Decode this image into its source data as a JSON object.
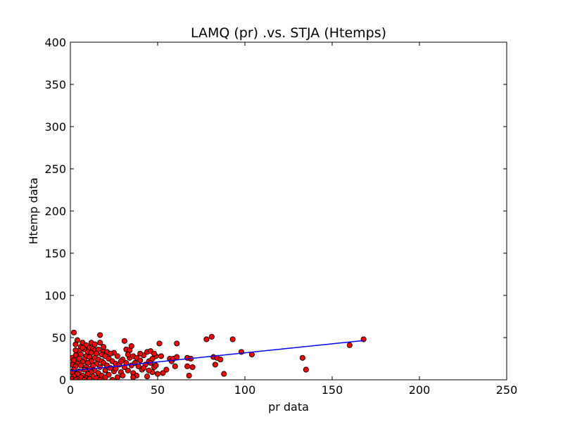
{
  "chart_data": {
    "type": "scatter",
    "title": "LAMQ (pr) .vs. STJA (Htemps)",
    "xlabel": "pr data",
    "ylabel": "Htemp data",
    "xlim": [
      0,
      250
    ],
    "ylim": [
      0,
      400
    ],
    "xticks": [
      0,
      50,
      100,
      150,
      200,
      250
    ],
    "yticks": [
      0,
      50,
      100,
      150,
      200,
      250,
      300,
      350,
      400
    ],
    "xtick_labels": [
      "0",
      "50",
      "100",
      "150",
      "200",
      "250"
    ],
    "ytick_labels": [
      "0",
      "50",
      "100",
      "150",
      "200",
      "250",
      "300",
      "350",
      "400"
    ],
    "grid": false,
    "legend": "none",
    "marker_color": "#ff0000",
    "marker_edge_color": "#000000",
    "line_color": "#0000ff",
    "series": [
      {
        "type": "scatter",
        "points": [
          [
            2,
            56
          ],
          [
            17,
            53
          ],
          [
            4,
            47
          ],
          [
            7,
            44
          ],
          [
            17,
            44
          ],
          [
            3,
            42
          ],
          [
            9,
            41
          ],
          [
            6,
            39
          ],
          [
            11,
            38
          ],
          [
            13,
            37
          ],
          [
            8,
            36
          ],
          [
            14,
            35
          ],
          [
            16,
            36
          ],
          [
            5,
            34
          ],
          [
            19,
            34
          ],
          [
            10,
            33
          ],
          [
            21,
            33
          ],
          [
            12,
            32
          ],
          [
            25,
            32
          ],
          [
            15,
            31
          ],
          [
            6,
            30
          ],
          [
            18,
            30
          ],
          [
            23,
            31
          ],
          [
            3,
            29
          ],
          [
            9,
            28
          ],
          [
            20,
            28
          ],
          [
            27,
            28
          ],
          [
            11,
            27
          ],
          [
            14,
            26
          ],
          [
            1,
            26
          ],
          [
            5,
            25
          ],
          [
            8,
            24
          ],
          [
            16,
            24
          ],
          [
            22,
            25
          ],
          [
            2,
            23
          ],
          [
            12,
            22
          ],
          [
            18,
            22
          ],
          [
            24,
            22
          ],
          [
            7,
            21
          ],
          [
            10,
            20
          ],
          [
            4,
            19
          ],
          [
            15,
            19
          ],
          [
            19,
            20
          ],
          [
            26,
            19
          ],
          [
            1,
            18
          ],
          [
            6,
            17
          ],
          [
            13,
            17
          ],
          [
            21,
            17
          ],
          [
            3,
            16
          ],
          [
            9,
            15
          ],
          [
            17,
            15
          ],
          [
            23,
            14
          ],
          [
            11,
            13
          ],
          [
            2,
            12
          ],
          [
            8,
            12
          ],
          [
            14,
            11
          ],
          [
            20,
            11
          ],
          [
            5,
            10
          ],
          [
            25,
            10
          ],
          [
            1,
            9
          ],
          [
            12,
            9
          ],
          [
            16,
            8
          ],
          [
            4,
            7
          ],
          [
            10,
            7
          ],
          [
            22,
            6
          ],
          [
            7,
            5
          ],
          [
            18,
            5
          ],
          [
            2,
            4
          ],
          [
            13,
            4
          ],
          [
            6,
            3
          ],
          [
            20,
            3
          ],
          [
            9,
            2
          ],
          [
            15,
            2
          ],
          [
            1,
            1
          ],
          [
            4,
            1
          ],
          [
            11,
            1
          ],
          [
            3,
            0
          ],
          [
            8,
            0
          ],
          [
            17,
            0
          ],
          [
            24,
            0
          ],
          [
            26,
            13
          ],
          [
            28,
            18
          ],
          [
            29,
            9
          ],
          [
            30,
            24
          ],
          [
            31,
            15
          ],
          [
            32,
            20
          ],
          [
            33,
            11
          ],
          [
            34,
            26
          ],
          [
            35,
            17
          ],
          [
            36,
            8
          ],
          [
            27,
            3
          ],
          [
            29,
            22
          ],
          [
            30,
            5
          ],
          [
            12,
            44
          ],
          [
            7,
            38
          ],
          [
            3,
            35
          ],
          [
            14,
            42
          ],
          [
            19,
            39
          ],
          [
            31,
            46
          ],
          [
            32,
            36
          ],
          [
            34,
            35
          ],
          [
            35,
            40
          ],
          [
            36,
            28
          ],
          [
            33,
            30
          ],
          [
            38,
            26
          ],
          [
            37,
            20
          ],
          [
            39,
            16
          ],
          [
            40,
            23
          ],
          [
            41,
            12
          ],
          [
            42,
            29
          ],
          [
            43,
            18
          ],
          [
            44,
            33
          ],
          [
            45,
            22
          ],
          [
            46,
            34
          ],
          [
            47,
            9
          ],
          [
            48,
            15
          ],
          [
            49,
            28
          ],
          [
            50,
            7
          ],
          [
            38,
            5
          ],
          [
            40,
            31
          ],
          [
            42,
            14
          ],
          [
            44,
            4
          ],
          [
            46,
            20
          ],
          [
            48,
            31
          ],
          [
            49,
            17
          ],
          [
            47,
            25
          ],
          [
            45,
            11
          ],
          [
            36,
            3
          ],
          [
            51,
            43
          ],
          [
            52,
            28
          ],
          [
            53,
            8
          ],
          [
            55,
            12
          ],
          [
            57,
            25
          ],
          [
            58,
            22
          ],
          [
            59,
            25
          ],
          [
            60,
            16
          ],
          [
            61,
            27
          ],
          [
            61,
            43
          ],
          [
            67,
            16
          ],
          [
            67,
            26
          ],
          [
            68,
            5
          ],
          [
            69,
            25
          ],
          [
            70,
            15
          ],
          [
            78,
            48
          ],
          [
            81,
            51
          ],
          [
            82,
            27
          ],
          [
            83,
            18
          ],
          [
            84,
            26
          ],
          [
            86,
            24
          ],
          [
            88,
            7
          ],
          [
            93,
            48
          ],
          [
            98,
            33
          ],
          [
            104,
            30
          ],
          [
            133,
            26
          ],
          [
            135,
            12
          ],
          [
            160,
            41
          ],
          [
            168,
            48
          ]
        ]
      }
    ],
    "fit_line": {
      "x": [
        0,
        168
      ],
      "y": [
        10.5,
        46.5
      ]
    }
  }
}
